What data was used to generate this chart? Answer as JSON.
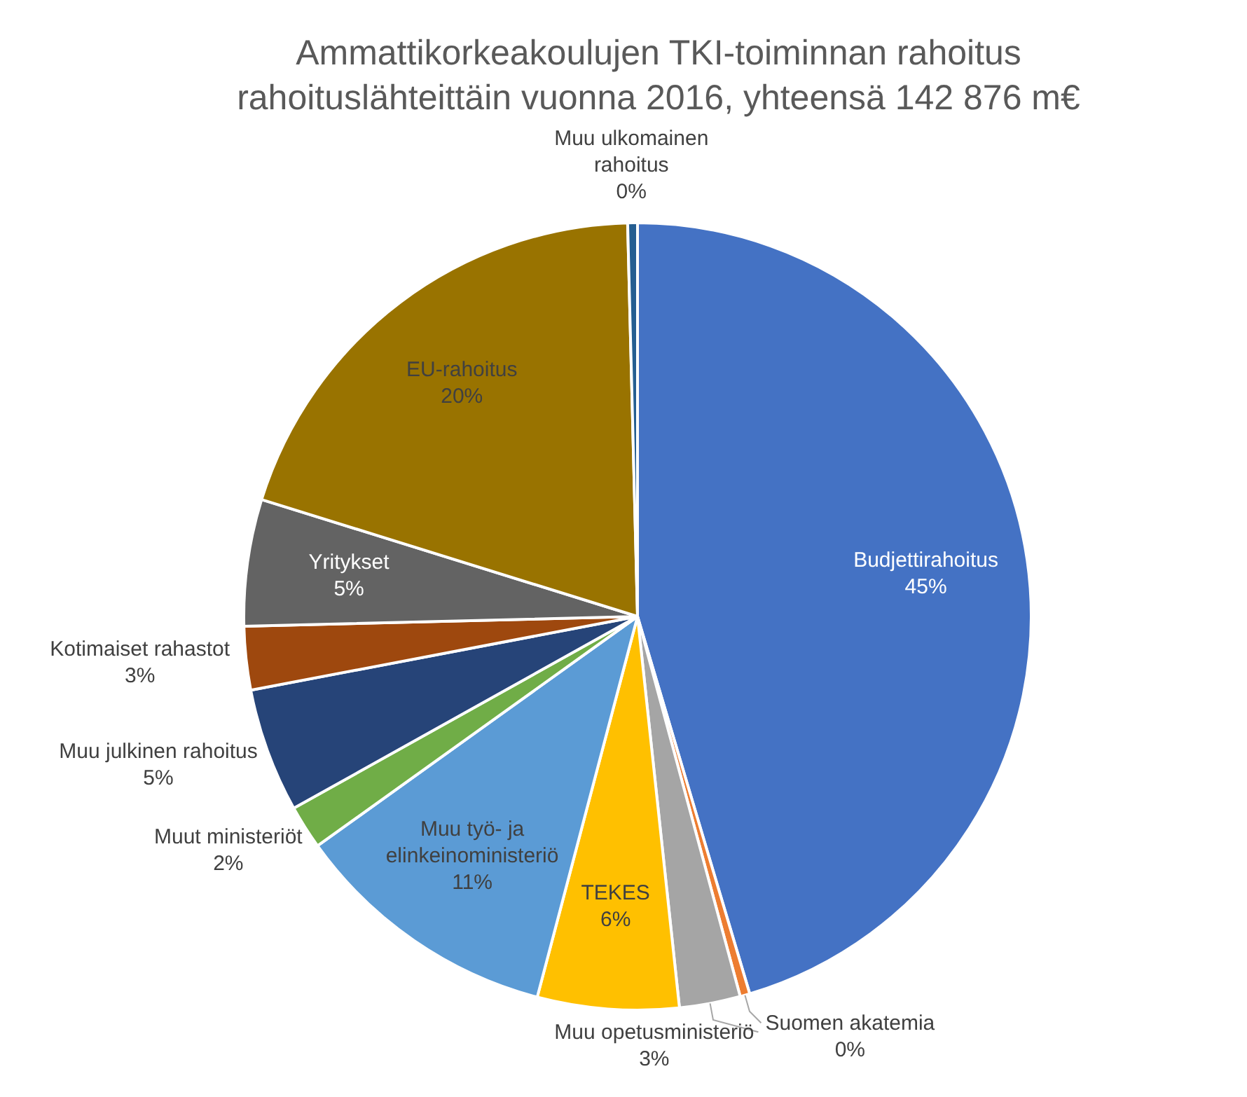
{
  "chart_data": {
    "type": "pie",
    "title": "Ammattikorkeakoulujen TKI-toiminnan rahoitus rahoituslähteittäin vuonna 2016, yhteensä 142 876 m€",
    "categories": [
      "Budjettirahoitus",
      "Suomen akatemia",
      "Muu opetusministeriö",
      "TEKES",
      "Muu työ- ja elinkeinoministeriö",
      "Muut ministeriöt",
      "Muu julkinen rahoitus",
      "Kotimaiset rahastot",
      "Yritykset",
      "EU-rahoitus",
      "Muu ulkomainen rahoitus"
    ],
    "values": [
      45.4,
      0.4,
      2.5,
      5.8,
      11,
      1.8,
      5.1,
      2.6,
      5.2,
      19.8,
      0.4
    ],
    "value_labels": [
      "45%",
      "0%",
      "3%",
      "6%",
      "11%",
      "2%",
      "5%",
      "3%",
      "5%",
      "20%",
      "0%"
    ],
    "colors": [
      "#4472c4",
      "#ed7d31",
      "#a5a5a5",
      "#ffc000",
      "#5b9bd5",
      "#70ad47",
      "#264478",
      "#9e480e",
      "#636363",
      "#997300",
      "#255e91"
    ],
    "legend": false
  }
}
